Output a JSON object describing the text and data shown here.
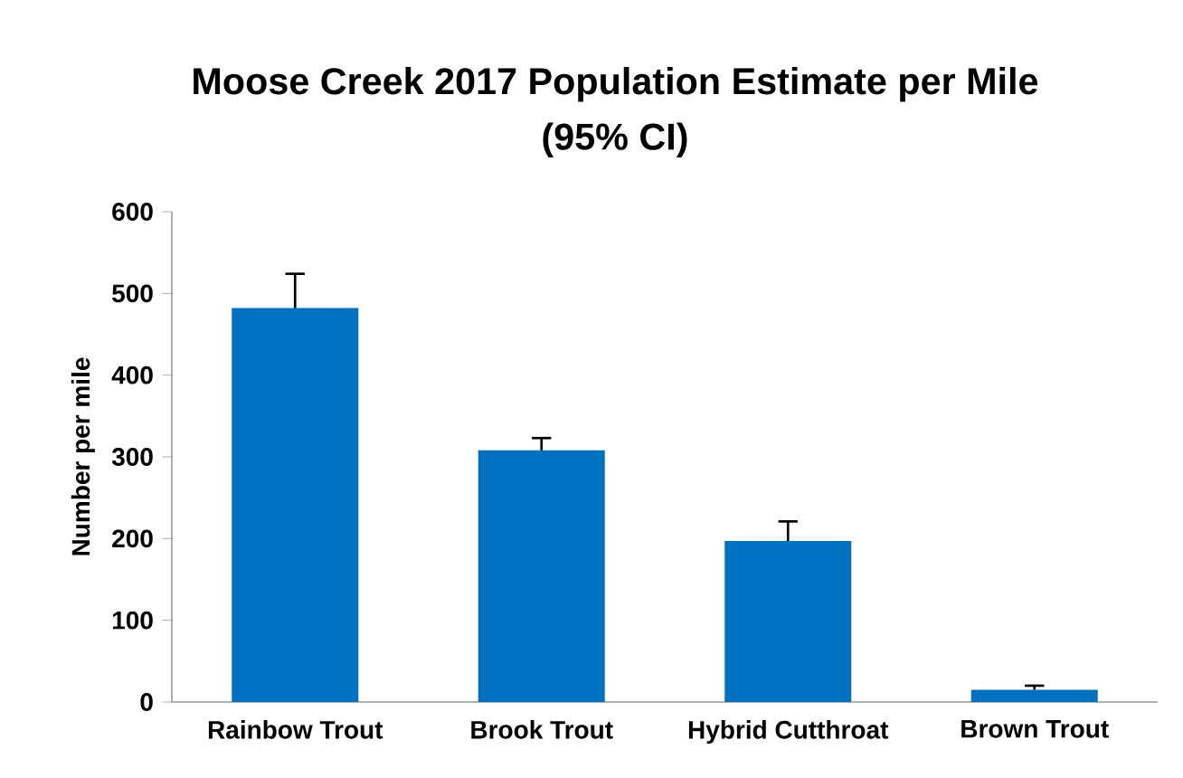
{
  "chart_data": {
    "type": "bar",
    "title": "Moose Creek 2017 Population Estimate per Mile\n(95% CI)",
    "ylabel": "Number per mile",
    "categories": [
      "Rainbow Trout",
      "Brook Trout",
      "Hybrid Cutthroat",
      "Brown Trout"
    ],
    "values": [
      482,
      308,
      197,
      15
    ],
    "errors": [
      [
        482,
        524
      ],
      [
        308,
        323
      ],
      [
        197,
        221
      ],
      [
        15,
        20
      ]
    ],
    "color": "#0070c0",
    "ylim": [
      0,
      600
    ],
    "yticks": [
      0,
      100,
      200,
      300,
      400,
      500,
      600
    ],
    "grid": false
  }
}
